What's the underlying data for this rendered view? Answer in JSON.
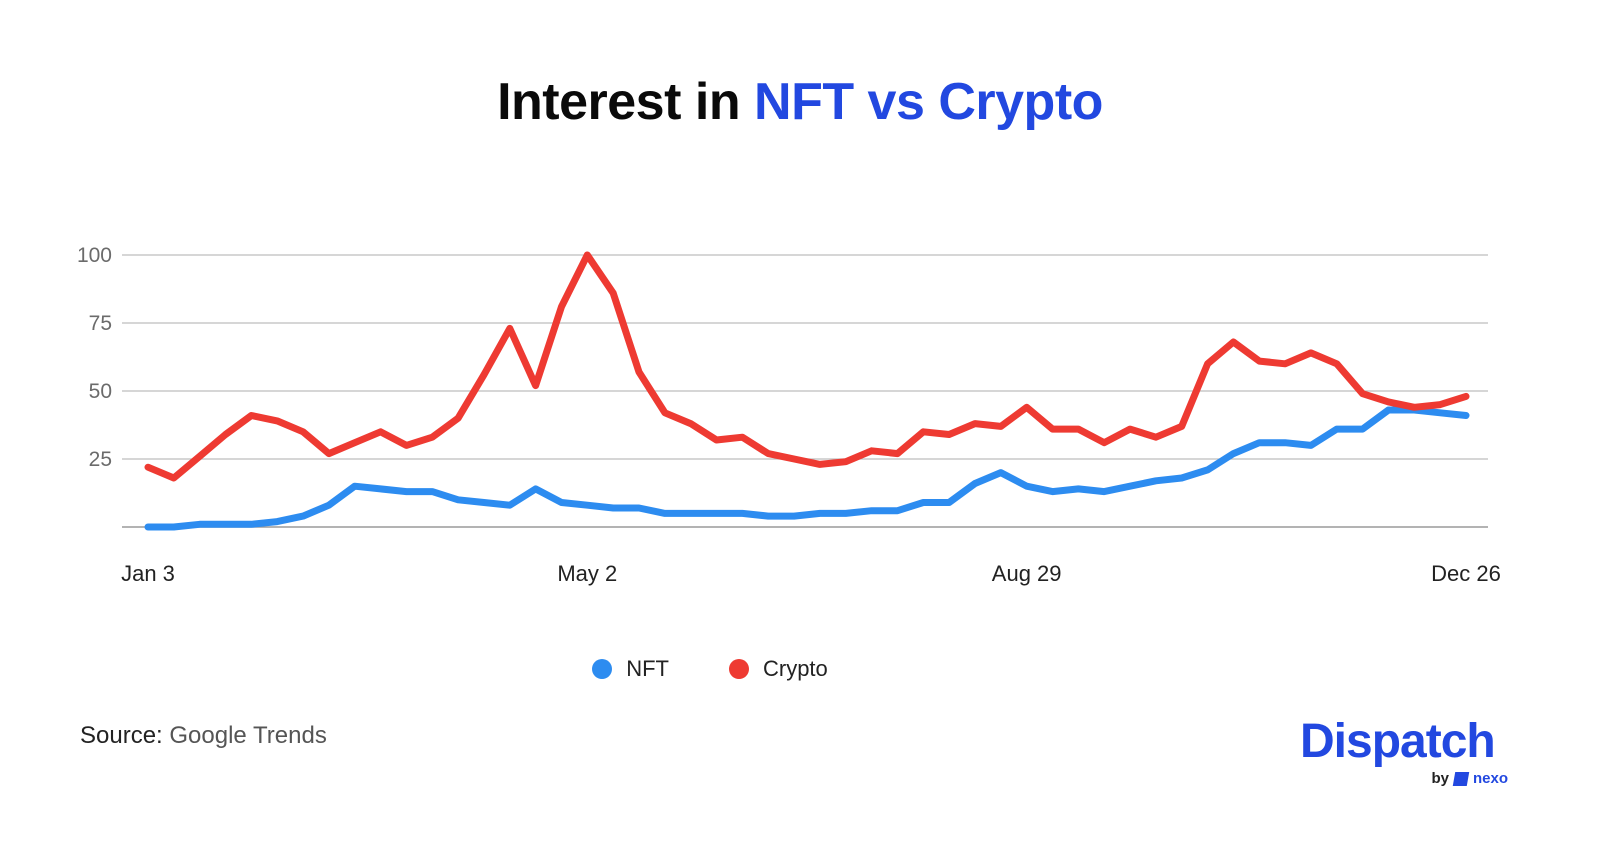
{
  "title": {
    "part1": "Interest in",
    "part2": "NFT vs Crypto"
  },
  "source": {
    "label": "Source:",
    "value": "Google Trends"
  },
  "logo": {
    "main": "Dispatch",
    "by": "by",
    "brand": "nexo"
  },
  "colors": {
    "nft": "#2d8cf0",
    "crypto": "#ee3a32",
    "grid": "#bdbdbd",
    "brand_blue": "#2248e0"
  },
  "chart_data": {
    "type": "line",
    "title": "Interest in NFT vs Crypto",
    "xlabel": "",
    "ylabel": "",
    "ylim": [
      0,
      100
    ],
    "yticks": [
      25,
      50,
      75,
      100
    ],
    "xtick_labels": [
      "Jan 3",
      "May 2",
      "Aug 29",
      "Dec 26"
    ],
    "xtick_indices": [
      0,
      17,
      34,
      51
    ],
    "grid": true,
    "legend_position": "bottom-center",
    "series": [
      {
        "name": "NFT",
        "color": "#2d8cf0",
        "values": [
          0,
          0,
          1,
          1,
          1,
          2,
          4,
          8,
          15,
          14,
          13,
          13,
          10,
          9,
          8,
          14,
          9,
          8,
          7,
          7,
          5,
          5,
          5,
          5,
          4,
          4,
          5,
          5,
          6,
          6,
          9,
          9,
          16,
          20,
          15,
          13,
          14,
          13,
          15,
          17,
          18,
          21,
          27,
          31,
          31,
          30,
          36,
          36,
          43,
          43,
          42,
          41
        ]
      },
      {
        "name": "Crypto",
        "color": "#ee3a32",
        "values": [
          22,
          18,
          26,
          34,
          41,
          39,
          35,
          27,
          31,
          35,
          30,
          33,
          40,
          56,
          73,
          52,
          81,
          100,
          86,
          57,
          42,
          38,
          32,
          33,
          27,
          25,
          23,
          24,
          28,
          27,
          35,
          34,
          38,
          37,
          44,
          36,
          36,
          31,
          36,
          33,
          37,
          60,
          68,
          61,
          60,
          64,
          60,
          49,
          46,
          44,
          45,
          48
        ]
      }
    ]
  }
}
